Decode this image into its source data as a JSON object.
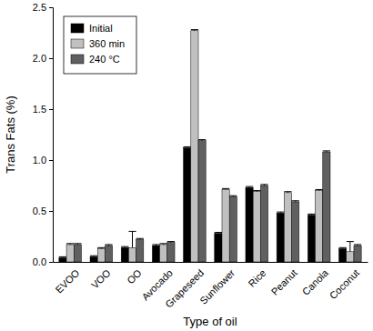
{
  "chart_data": {
    "type": "bar",
    "x_label": "Type of oil",
    "y_label": "Trans Fats (%)",
    "categories": [
      "EVOO",
      "VOO",
      "OO",
      "Avocado",
      "Grapeseed",
      "Sunflower",
      "Rice",
      "Peanut",
      "Canola",
      "Coconut"
    ],
    "series": [
      {
        "name": "Initial",
        "color": "#000000",
        "values": [
          0.04,
          0.05,
          0.14,
          0.16,
          1.12,
          0.28,
          0.73,
          0.48,
          0.46,
          0.13
        ],
        "errors": [
          0.01,
          0.01,
          0.01,
          0.01,
          0.01,
          0.01,
          0.01,
          0.01,
          0.01,
          0.01
        ]
      },
      {
        "name": "360 min",
        "color": "#c0c0c0",
        "values": [
          0.17,
          0.13,
          0.14,
          0.17,
          2.27,
          0.71,
          0.69,
          0.68,
          0.7,
          0.1
        ],
        "errors": [
          0.01,
          0.01,
          0.16,
          0.01,
          0.01,
          0.01,
          0.01,
          0.01,
          0.01,
          0.1
        ]
      },
      {
        "name": "240 °C",
        "color": "#606060",
        "values": [
          0.17,
          0.16,
          0.22,
          0.19,
          1.19,
          0.64,
          0.75,
          0.59,
          1.08,
          0.16
        ],
        "errors": [
          0.01,
          0.01,
          0.01,
          0.01,
          0.01,
          0.01,
          0.01,
          0.01,
          0.01,
          0.01
        ]
      }
    ],
    "ylim": [
      0,
      2.5
    ],
    "yticks": [
      {
        "value": 0,
        "label": "0.0"
      },
      0.5,
      {
        "value": 1,
        "label": "1.0"
      },
      1.5,
      {
        "value": 2,
        "label": "2.0"
      },
      2.5
    ],
    "legend": "upper-left",
    "grid": false
  }
}
